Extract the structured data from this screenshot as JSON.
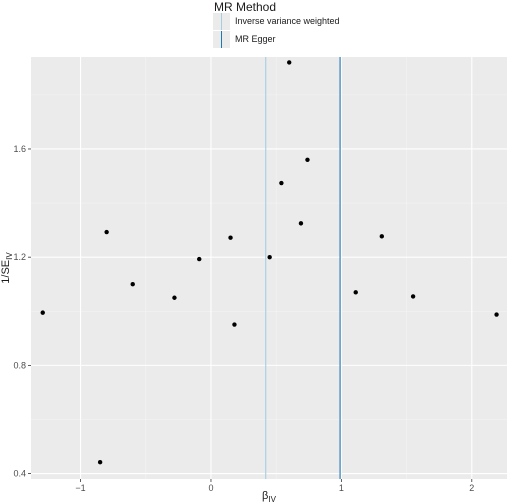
{
  "chart_data": {
    "type": "scatter",
    "title": "",
    "xlabel_main": "β",
    "xlabel_sub": "IV",
    "ylabel_main": "1/SE",
    "ylabel_sub": "IV",
    "xlim": [
      -1.38,
      2.27
    ],
    "ylim": [
      0.38,
      1.94
    ],
    "x_ticks": [
      -1,
      0,
      1,
      2
    ],
    "x_tick_labels": [
      "−1",
      "0",
      "1",
      "2"
    ],
    "y_ticks": [
      0.4,
      0.8,
      1.2,
      1.6
    ],
    "y_tick_labels": [
      "0.4",
      "0.8",
      "1.2",
      "1.6"
    ],
    "grid": true,
    "points": [
      {
        "x": -1.29,
        "y": 0.995
      },
      {
        "x": -0.85,
        "y": 0.442
      },
      {
        "x": -0.8,
        "y": 1.293
      },
      {
        "x": -0.6,
        "y": 1.1
      },
      {
        "x": -0.28,
        "y": 1.05
      },
      {
        "x": -0.09,
        "y": 1.193
      },
      {
        "x": 0.15,
        "y": 1.272
      },
      {
        "x": 0.18,
        "y": 0.951
      },
      {
        "x": 0.45,
        "y": 1.2
      },
      {
        "x": 0.54,
        "y": 1.474
      },
      {
        "x": 0.6,
        "y": 1.92
      },
      {
        "x": 0.69,
        "y": 1.325
      },
      {
        "x": 0.74,
        "y": 1.56
      },
      {
        "x": 1.11,
        "y": 1.07
      },
      {
        "x": 1.31,
        "y": 1.277
      },
      {
        "x": 1.55,
        "y": 1.055
      },
      {
        "x": 2.19,
        "y": 0.988
      }
    ],
    "lines": [
      {
        "name": "Inverse variance weighted",
        "x": 0.42,
        "color": "#a6cee3"
      },
      {
        "name": "MR Egger",
        "x": 0.99,
        "color": "#1f78b4"
      }
    ],
    "legend": {
      "title": "MR Method",
      "placement": "top",
      "entries": [
        {
          "label": "Inverse variance weighted",
          "color": "#a6cee3"
        },
        {
          "label": "MR Egger",
          "color": "#1f78b4"
        }
      ]
    }
  }
}
